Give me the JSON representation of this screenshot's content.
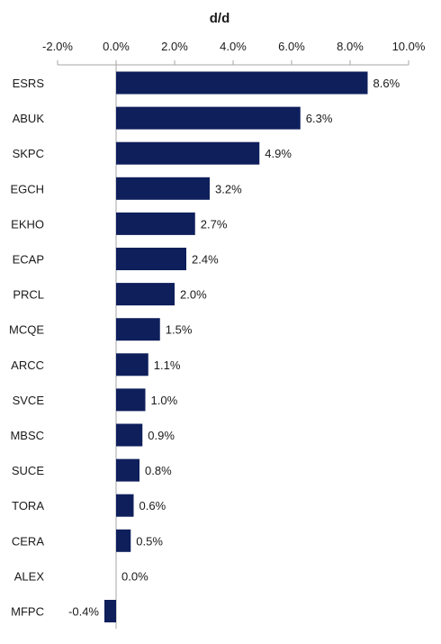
{
  "chart_data": {
    "type": "bar",
    "orientation": "horizontal",
    "title": "d/d",
    "xlabel": "",
    "ylabel": "",
    "xlim": [
      -2.0,
      10.0
    ],
    "ticks": [
      -2.0,
      0.0,
      2.0,
      4.0,
      6.0,
      8.0,
      10.0
    ],
    "tick_labels": [
      "-2.0%",
      "0.0%",
      "2.0%",
      "4.0%",
      "6.0%",
      "8.0%",
      "10.0%"
    ],
    "axis_position": "top",
    "grid": false,
    "bar_color": "#0f1f5c",
    "categories": [
      "ESRS",
      "ABUK",
      "SKPC",
      "EGCH",
      "EKHO",
      "ECAP",
      "PRCL",
      "MCQE",
      "ARCC",
      "SVCE",
      "MBSC",
      "SUCE",
      "TORA",
      "CERA",
      "ALEX",
      "MFPC"
    ],
    "values": [
      8.6,
      6.3,
      4.9,
      3.2,
      2.7,
      2.4,
      2.0,
      1.5,
      1.1,
      1.0,
      0.9,
      0.8,
      0.6,
      0.5,
      0.0,
      -0.4
    ],
    "value_labels": [
      "8.6%",
      "6.3%",
      "4.9%",
      "3.2%",
      "2.7%",
      "2.4%",
      "2.0%",
      "1.5%",
      "1.1%",
      "1.0%",
      "0.9%",
      "0.8%",
      "0.6%",
      "0.5%",
      "0.0%",
      "-0.4%"
    ]
  }
}
